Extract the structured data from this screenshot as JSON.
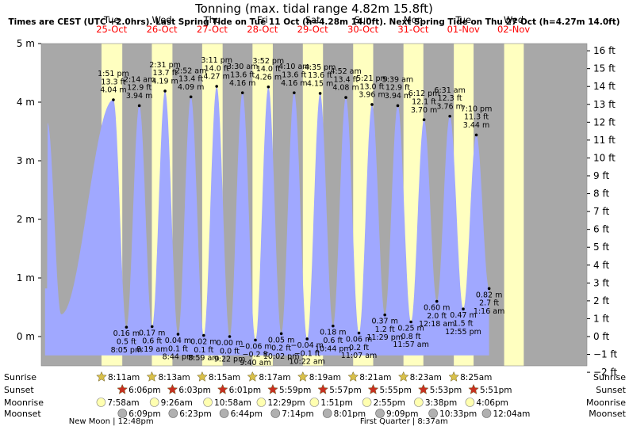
{
  "chart_data": {
    "type": "area",
    "title": "Tonning (max. tidal range 4.82m 15.8ft)",
    "subtitle": "Times are CEST (UTC +2.0hrs). Last Spring Tide on Tue 11 Oct (h=4.28m 14.0ft).  Next Spring Tide on Thu 27 Oct (h=4.27m 14.0ft)",
    "ylabel_left": "m",
    "ylabel_right": "ft",
    "ylim_m": [
      -0.5,
      5.0
    ],
    "xlim_hours": [
      -20.6,
      240
    ],
    "left_ticks": [
      {
        "v": 5,
        "label": "5 m"
      },
      {
        "v": 4,
        "label": "4 m"
      },
      {
        "v": 3,
        "label": "3 m"
      },
      {
        "v": 2,
        "label": "2 m"
      },
      {
        "v": 1,
        "label": "1 m"
      },
      {
        "v": 0,
        "label": "0 m"
      }
    ],
    "right_ticks": [
      {
        "v": 16,
        "label": "16 ft"
      },
      {
        "v": 15,
        "label": "15 ft"
      },
      {
        "v": 14,
        "label": "14 ft"
      },
      {
        "v": 13,
        "label": "13 ft"
      },
      {
        "v": 12,
        "label": "12 ft"
      },
      {
        "v": 11,
        "label": "11 ft"
      },
      {
        "v": 10,
        "label": "10 ft"
      },
      {
        "v": 9,
        "label": "9 ft"
      },
      {
        "v": 8,
        "label": "8 ft"
      },
      {
        "v": 7,
        "label": "7 ft"
      },
      {
        "v": 6,
        "label": "6 ft"
      },
      {
        "v": 5,
        "label": "5 ft"
      },
      {
        "v": 4,
        "label": "4 ft"
      },
      {
        "v": 3,
        "label": "3 ft"
      },
      {
        "v": 2,
        "label": "2 ft"
      },
      {
        "v": 1,
        "label": "1 ft"
      },
      {
        "v": 0,
        "label": "0 ft"
      },
      {
        "v": -1,
        "label": "−1 ft"
      },
      {
        "v": -2,
        "label": "−2 ft"
      }
    ],
    "days": [
      {
        "name": "Tue",
        "date": "25-Oct",
        "sunrise": "8:11am",
        "sunset": "6:06pm",
        "moonrise": "7:58am",
        "moonset": "6:09pm"
      },
      {
        "name": "Wed",
        "date": "26-Oct",
        "sunrise": "8:13am",
        "sunset": "6:03pm",
        "moonrise": "9:26am",
        "moonset": "6:23pm"
      },
      {
        "name": "Thu",
        "date": "27-Oct",
        "sunrise": "8:15am",
        "sunset": "6:01pm",
        "moonrise": "10:58am",
        "moonset": "6:44pm"
      },
      {
        "name": "Fri",
        "date": "28-Oct",
        "sunrise": "8:17am",
        "sunset": "5:59pm",
        "moonrise": "12:29pm",
        "moonset": "7:14pm"
      },
      {
        "name": "Sat",
        "date": "29-Oct",
        "sunrise": "8:19am",
        "sunset": "5:57pm",
        "moonrise": "1:51pm",
        "moonset": "8:01pm"
      },
      {
        "name": "Sun",
        "date": "30-Oct",
        "sunrise": "8:21am",
        "sunset": "5:55pm",
        "moonrise": "2:55pm",
        "moonset": "9:09pm"
      },
      {
        "name": "Mon",
        "date": "31-Oct",
        "sunrise": "8:23am",
        "sunset": "5:53pm",
        "moonrise": "3:38pm",
        "moonset": "10:33pm"
      },
      {
        "name": "Tue",
        "date": "01-Nov",
        "sunrise": "8:25am",
        "sunset": "5:51pm",
        "moonrise": "4:06pm",
        "moonset": ""
      },
      {
        "name": "Wed",
        "date": "02-Nov",
        "sunrise": "",
        "sunset": "",
        "moonrise": "",
        "moonset": ""
      }
    ],
    "daylight_hours": [
      [
        8.18,
        18.1
      ],
      [
        32.22,
        42.05
      ],
      [
        56.25,
        66.02
      ],
      [
        80.28,
        89.98
      ],
      [
        104.32,
        113.95
      ],
      [
        128.35,
        137.92
      ],
      [
        152.38,
        161.88
      ],
      [
        176.42,
        185.85
      ],
      [
        200.45,
        209.82
      ]
    ],
    "extra_moonset": {
      "time": "12:04am",
      "hour": 192.07
    },
    "moon_phases": [
      {
        "label": "New Moon | 12:48pm",
        "hour": 12.8
      },
      {
        "label": "First Quarter | 8:37am",
        "hour": 152.62
      }
    ],
    "row_labels": [
      "Sunrise",
      "Sunset",
      "Moonrise",
      "Moonset"
    ],
    "tides": [
      {
        "hour": -17.6,
        "m": 3.65,
        "type": "high",
        "labels": []
      },
      {
        "hour": -11.1,
        "m": 0.38,
        "type": "low",
        "labels": []
      },
      {
        "hour": 13.85,
        "m": 4.04,
        "type": "high",
        "labels": [
          "1:51 pm",
          "13.3 ft",
          "4.04 m"
        ]
      },
      {
        "hour": 20.08,
        "m": 0.16,
        "type": "low",
        "labels": [
          "0.16 m",
          "0.5 ft",
          "8:05 pm"
        ]
      },
      {
        "hour": 26.23,
        "m": 3.94,
        "type": "high",
        "labels": [
          "2:14 am",
          "12.9 ft",
          "3.94 m"
        ]
      },
      {
        "hour": 32.32,
        "m": 0.17,
        "type": "low",
        "labels": [
          "0.17 m",
          "0.6 ft",
          "8:19 am"
        ]
      },
      {
        "hour": 38.52,
        "m": 4.19,
        "type": "high",
        "labels": [
          "2:31 pm",
          "13.7 ft",
          "4.19 m"
        ]
      },
      {
        "hour": 44.73,
        "m": 0.04,
        "type": "low",
        "labels": [
          "0.04 m",
          "0.1 ft",
          "8:44 pm"
        ]
      },
      {
        "hour": 50.87,
        "m": 4.09,
        "type": "high",
        "labels": [
          "2:52 am",
          "13.4 ft",
          "4.09 m"
        ]
      },
      {
        "hour": 56.98,
        "m": 0.02,
        "type": "low",
        "labels": [
          "0.02 m",
          "0.1 ft",
          "8:59 am"
        ]
      },
      {
        "hour": 63.18,
        "m": 4.27,
        "type": "high",
        "labels": [
          "3:11 pm",
          "14.0 ft",
          "4.27 m"
        ]
      },
      {
        "hour": 69.37,
        "m": 0.0,
        "type": "low",
        "labels": [
          "0.00 m",
          "0.0 ft",
          "9:22 pm"
        ]
      },
      {
        "hour": 75.5,
        "m": 4.16,
        "type": "high",
        "labels": [
          "3:30 am",
          "13.6 ft",
          "4.16 m"
        ]
      },
      {
        "hour": 81.67,
        "m": -0.06,
        "type": "low",
        "labels": [
          "−0.06 m",
          "−0.2 ft",
          "9:40 am"
        ]
      },
      {
        "hour": 87.87,
        "m": 4.26,
        "type": "high",
        "labels": [
          "3:52 pm",
          "14.0 ft",
          "4.26 m"
        ]
      },
      {
        "hour": 94.03,
        "m": 0.05,
        "type": "low",
        "labels": [
          "0.05 m",
          "0.2 ft",
          "10:02 pm"
        ]
      },
      {
        "hour": 100.17,
        "m": 4.16,
        "type": "high",
        "labels": [
          "4:10 am",
          "13.6 ft",
          "4.16 m"
        ]
      },
      {
        "hour": 106.37,
        "m": -0.04,
        "type": "low",
        "labels": [
          "−0.04 m",
          "−0.1 ft",
          "10:22 am"
        ]
      },
      {
        "hour": 112.58,
        "m": 4.15,
        "type": "high",
        "labels": [
          "4:35 pm",
          "13.6 ft",
          "4.15 m"
        ]
      },
      {
        "hour": 118.73,
        "m": 0.18,
        "type": "low",
        "labels": [
          "0.18 m",
          "0.6 ft",
          "10:44 pm"
        ]
      },
      {
        "hour": 124.87,
        "m": 4.08,
        "type": "high",
        "labels": [
          "4:52 am",
          "13.4 ft",
          "4.08 m"
        ]
      },
      {
        "hour": 131.12,
        "m": 0.06,
        "type": "low",
        "labels": [
          "0.06 m",
          "0.2 ft",
          "11:07 am"
        ]
      },
      {
        "hour": 137.35,
        "m": 3.96,
        "type": "high",
        "labels": [
          "5:21 pm",
          "13.0 ft",
          "3.96 m"
        ]
      },
      {
        "hour": 143.48,
        "m": 0.37,
        "type": "low",
        "labels": [
          "0.37 m",
          "1.2 ft",
          "11:29 pm"
        ]
      },
      {
        "hour": 149.65,
        "m": 3.94,
        "type": "high",
        "labels": [
          "5:39 am",
          "12.9 ft",
          "3.94 m"
        ]
      },
      {
        "hour": 155.95,
        "m": 0.25,
        "type": "low",
        "labels": [
          "0.25 m",
          "0.8 ft",
          "11:57 am"
        ]
      },
      {
        "hour": 162.2,
        "m": 3.7,
        "type": "high",
        "labels": [
          "6:12 pm",
          "12.1 ft",
          "3.70 m"
        ]
      },
      {
        "hour": 168.3,
        "m": 0.6,
        "type": "low",
        "labels": [
          "0.60 m",
          "2.0 ft",
          "12:18 am"
        ]
      },
      {
        "hour": 174.52,
        "m": 3.76,
        "type": "high",
        "labels": [
          "6:31 am",
          "12.3 ft",
          "3.76 m"
        ]
      },
      {
        "hour": 180.92,
        "m": 0.47,
        "type": "low",
        "labels": [
          "0.47 m",
          "1.5 ft",
          "12:55 pm"
        ]
      },
      {
        "hour": 187.17,
        "m": 3.44,
        "type": "high",
        "labels": [
          "7:10 pm",
          "11.3 ft",
          "3.44 m"
        ]
      },
      {
        "hour": 193.27,
        "m": 0.82,
        "type": "low",
        "labels": [
          "0.82 m",
          "2.7 ft",
          "1:16 am"
        ]
      }
    ],
    "curve_end_hours": [
      -18.8,
      193.27
    ]
  },
  "colors": {
    "night": "#a8a8a8",
    "day": "#ffffc0",
    "water": "#a0a8ff",
    "title": "#000000",
    "date": "#ff0000",
    "sun": "#d8c04a",
    "sunset_star": "#c83020",
    "moonrise": "#ffffb0",
    "moonset": "#b0b0b0"
  }
}
